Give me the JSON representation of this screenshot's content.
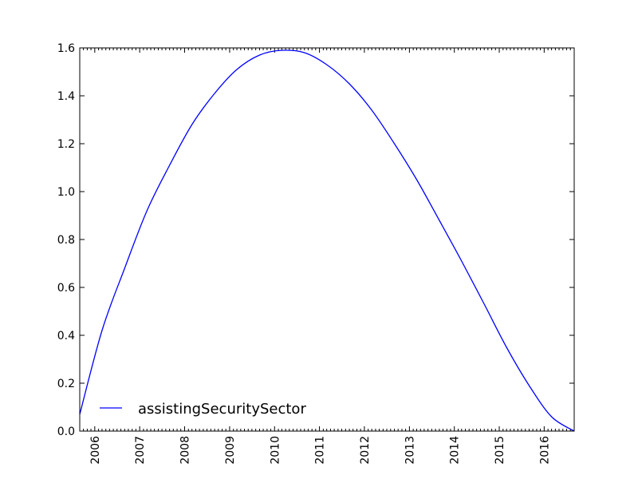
{
  "chart_data": {
    "type": "line",
    "title": "",
    "xlabel": "",
    "ylabel": "",
    "xlim": [
      "2005-09-01",
      "2016-09-01"
    ],
    "ylim": [
      0.0,
      1.6
    ],
    "grid": false,
    "legend_position": "lower-left",
    "x_ticks": [
      "2006",
      "2007",
      "2008",
      "2009",
      "2010",
      "2011",
      "2012",
      "2013",
      "2014",
      "2015",
      "2016"
    ],
    "y_ticks": [
      "0.0",
      "0.2",
      "0.4",
      "0.6",
      "0.8",
      "1.0",
      "1.2",
      "1.4",
      "1.6"
    ],
    "series": [
      {
        "name": "assistingSecuritySector",
        "color": "#0000ff",
        "x": [
          "2005-09-01",
          "2006-03-01",
          "2006-09-01",
          "2007-03-01",
          "2007-09-01",
          "2008-03-01",
          "2008-09-01",
          "2009-03-01",
          "2009-09-01",
          "2010-03-01",
          "2010-09-01",
          "2011-03-01",
          "2011-09-01",
          "2012-03-01",
          "2012-09-01",
          "2013-03-01",
          "2013-09-01",
          "2014-03-01",
          "2014-09-01",
          "2015-03-01",
          "2015-09-01",
          "2016-03-01",
          "2016-09-01"
        ],
        "y": [
          0.07,
          0.42,
          0.68,
          0.92,
          1.11,
          1.28,
          1.41,
          1.51,
          1.57,
          1.59,
          1.58,
          1.53,
          1.45,
          1.34,
          1.2,
          1.05,
          0.88,
          0.71,
          0.53,
          0.35,
          0.19,
          0.06,
          0.0
        ]
      }
    ]
  }
}
